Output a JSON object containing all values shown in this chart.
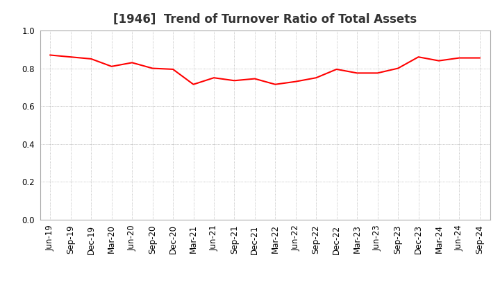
{
  "title": "[1946]  Trend of Turnover Ratio of Total Assets",
  "labels": [
    "Jun-19",
    "Sep-19",
    "Dec-19",
    "Mar-20",
    "Jun-20",
    "Sep-20",
    "Dec-20",
    "Mar-21",
    "Jun-21",
    "Sep-21",
    "Dec-21",
    "Mar-22",
    "Jun-22",
    "Sep-22",
    "Dec-22",
    "Mar-23",
    "Jun-23",
    "Sep-23",
    "Dec-23",
    "Mar-24",
    "Jun-24",
    "Sep-24"
  ],
  "values": [
    0.87,
    0.86,
    0.85,
    0.81,
    0.83,
    0.8,
    0.795,
    0.715,
    0.75,
    0.735,
    0.745,
    0.715,
    0.73,
    0.75,
    0.795,
    0.775,
    0.775,
    0.8,
    0.86,
    0.84,
    0.855,
    0.855
  ],
  "line_color": "#FF0000",
  "line_width": 1.5,
  "ylim": [
    0.0,
    1.0
  ],
  "yticks": [
    0.0,
    0.2,
    0.4,
    0.6,
    0.8,
    1.0
  ],
  "grid_color": "#999999",
  "bg_color": "#ffffff",
  "title_fontsize": 12,
  "tick_fontsize": 8.5
}
